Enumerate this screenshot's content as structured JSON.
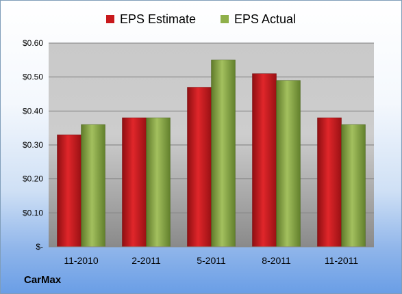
{
  "company": "CarMax",
  "colors": {
    "estimate": "#c8191c",
    "actual": "#8fb04a"
  },
  "chart_data": {
    "type": "bar",
    "categories": [
      "11-2010",
      "2-2011",
      "5-2011",
      "8-2011",
      "11-2011"
    ],
    "series": [
      {
        "name": "EPS Estimate",
        "values": [
          0.33,
          0.38,
          0.47,
          0.51,
          0.38
        ]
      },
      {
        "name": "EPS Actual",
        "values": [
          0.36,
          0.38,
          0.55,
          0.49,
          0.36
        ]
      }
    ],
    "yticks": [
      0,
      0.1,
      0.2,
      0.3,
      0.4,
      0.5,
      0.6
    ],
    "ytick_labels": [
      "$-",
      "$0.10",
      "$0.20",
      "$0.30",
      "$0.40",
      "$0.50",
      "$0.60"
    ],
    "ylim": [
      0,
      0.6
    ],
    "grid": true,
    "legend_position": "top"
  }
}
